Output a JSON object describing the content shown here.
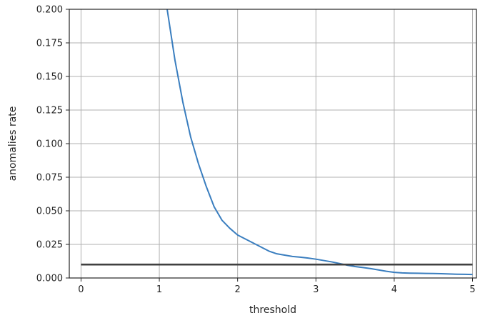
{
  "chart_data": {
    "type": "line",
    "title": "",
    "xlabel": "threshold",
    "ylabel": "anomalies rate",
    "xlim": [
      -0.15,
      5.05
    ],
    "ylim": [
      0.0,
      0.2
    ],
    "grid": true,
    "xticks": [
      0,
      1,
      2,
      3,
      4,
      5
    ],
    "xtick_labels": [
      "0",
      "1",
      "2",
      "3",
      "4",
      "5"
    ],
    "yticks": [
      0.0,
      0.025,
      0.05,
      0.075,
      0.1,
      0.125,
      0.15,
      0.175,
      0.2
    ],
    "ytick_labels": [
      "0.000",
      "0.025",
      "0.050",
      "0.075",
      "0.100",
      "0.125",
      "0.150",
      "0.175",
      "0.200"
    ],
    "series": [
      {
        "color": "#3a7ebf",
        "x": [
          1.1,
          1.2,
          1.3,
          1.4,
          1.5,
          1.6,
          1.7,
          1.8,
          1.9,
          2.0,
          2.1,
          2.2,
          2.3,
          2.4,
          2.5,
          2.6,
          2.7,
          2.8,
          2.9,
          3.0,
          3.1,
          3.2,
          3.3,
          3.4,
          3.5,
          3.6,
          3.7,
          3.8,
          3.9,
          4.0,
          4.1,
          4.2,
          4.3,
          4.4,
          4.5,
          4.6,
          4.7,
          4.8,
          4.9,
          5.0
        ],
        "y": [
          0.2,
          0.162,
          0.131,
          0.105,
          0.085,
          0.068,
          0.053,
          0.043,
          0.037,
          0.032,
          0.029,
          0.026,
          0.023,
          0.02,
          0.018,
          0.017,
          0.016,
          0.0155,
          0.0148,
          0.014,
          0.013,
          0.012,
          0.0108,
          0.0095,
          0.0085,
          0.0078,
          0.007,
          0.006,
          0.005,
          0.0042,
          0.0038,
          0.0036,
          0.0035,
          0.0034,
          0.0033,
          0.0032,
          0.003,
          0.0028,
          0.0027,
          0.0026
        ]
      },
      {
        "color": "#404040",
        "x": [
          0,
          5
        ],
        "y": [
          0.01,
          0.01
        ]
      }
    ]
  }
}
